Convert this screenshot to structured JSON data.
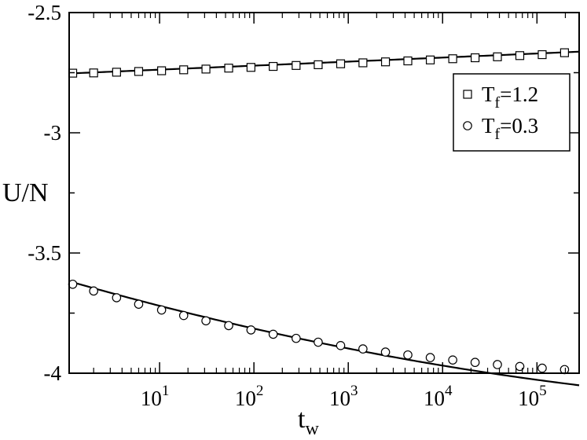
{
  "chart_data": {
    "type": "scatter",
    "title": "",
    "ylabel": "U/N",
    "xlabel_main": "t",
    "xlabel_sub": "w",
    "xscale": "log",
    "xlim": [
      1.1,
      280000
    ],
    "ylim": [
      -4.0,
      -2.5
    ],
    "x_ticks": [
      {
        "value": 10,
        "base": "10",
        "exp": "1"
      },
      {
        "value": 100,
        "base": "10",
        "exp": "2"
      },
      {
        "value": 1000,
        "base": "10",
        "exp": "3"
      },
      {
        "value": 10000,
        "base": "10",
        "exp": "4"
      },
      {
        "value": 100000,
        "base": "10",
        "exp": "5"
      }
    ],
    "y_ticks": [
      {
        "value": -2.5,
        "label": "-2.5"
      },
      {
        "value": -3.0,
        "label": "-3"
      },
      {
        "value": -3.5,
        "label": "-3.5"
      },
      {
        "value": -4.0,
        "label": "-4"
      }
    ],
    "legend_position": "right",
    "series": [
      {
        "name_main": "T",
        "name_sub": "f",
        "name_value": "=1.2",
        "marker": "square",
        "points": [
          {
            "x": 1.2,
            "y": -2.752
          },
          {
            "x": 2.0,
            "y": -2.751
          },
          {
            "x": 3.5,
            "y": -2.748
          },
          {
            "x": 6.0,
            "y": -2.745
          },
          {
            "x": 10.5,
            "y": -2.742
          },
          {
            "x": 18,
            "y": -2.738
          },
          {
            "x": 31,
            "y": -2.735
          },
          {
            "x": 54,
            "y": -2.731
          },
          {
            "x": 93,
            "y": -2.728
          },
          {
            "x": 160,
            "y": -2.724
          },
          {
            "x": 280,
            "y": -2.72
          },
          {
            "x": 480,
            "y": -2.717
          },
          {
            "x": 830,
            "y": -2.713
          },
          {
            "x": 1430,
            "y": -2.709
          },
          {
            "x": 2480,
            "y": -2.705
          },
          {
            "x": 4280,
            "y": -2.701
          },
          {
            "x": 7400,
            "y": -2.697
          },
          {
            "x": 12800,
            "y": -2.692
          },
          {
            "x": 22100,
            "y": -2.688
          },
          {
            "x": 38100,
            "y": -2.684
          },
          {
            "x": 65800,
            "y": -2.679
          },
          {
            "x": 113600,
            "y": -2.675
          },
          {
            "x": 196000,
            "y": -2.667
          }
        ],
        "fit": {
          "a": -2.754,
          "b": 0.0165,
          "c": 5e-05
        }
      },
      {
        "name_main": "T",
        "name_sub": "f",
        "name_value": "=0.3",
        "marker": "circle",
        "points": [
          {
            "x": 1.2,
            "y": -3.63
          },
          {
            "x": 2.0,
            "y": -3.658
          },
          {
            "x": 3.5,
            "y": -3.686
          },
          {
            "x": 6.0,
            "y": -3.713
          },
          {
            "x": 10.5,
            "y": -3.737
          },
          {
            "x": 18,
            "y": -3.76
          },
          {
            "x": 31,
            "y": -3.782
          },
          {
            "x": 54,
            "y": -3.802
          },
          {
            "x": 93,
            "y": -3.82
          },
          {
            "x": 160,
            "y": -3.838
          },
          {
            "x": 280,
            "y": -3.855
          },
          {
            "x": 480,
            "y": -3.871
          },
          {
            "x": 830,
            "y": -3.885
          },
          {
            "x": 1430,
            "y": -3.899
          },
          {
            "x": 2480,
            "y": -3.912
          },
          {
            "x": 4280,
            "y": -3.924
          },
          {
            "x": 7400,
            "y": -3.935
          },
          {
            "x": 12800,
            "y": -3.945
          },
          {
            "x": 22100,
            "y": -3.955
          },
          {
            "x": 38100,
            "y": -3.964
          },
          {
            "x": 65800,
            "y": -3.972
          },
          {
            "x": 113600,
            "y": -3.979
          },
          {
            "x": 196000,
            "y": -3.985
          }
        ],
        "fit": {
          "a": -3.613,
          "b": -0.1125,
          "c": 0.00592
        }
      }
    ]
  }
}
